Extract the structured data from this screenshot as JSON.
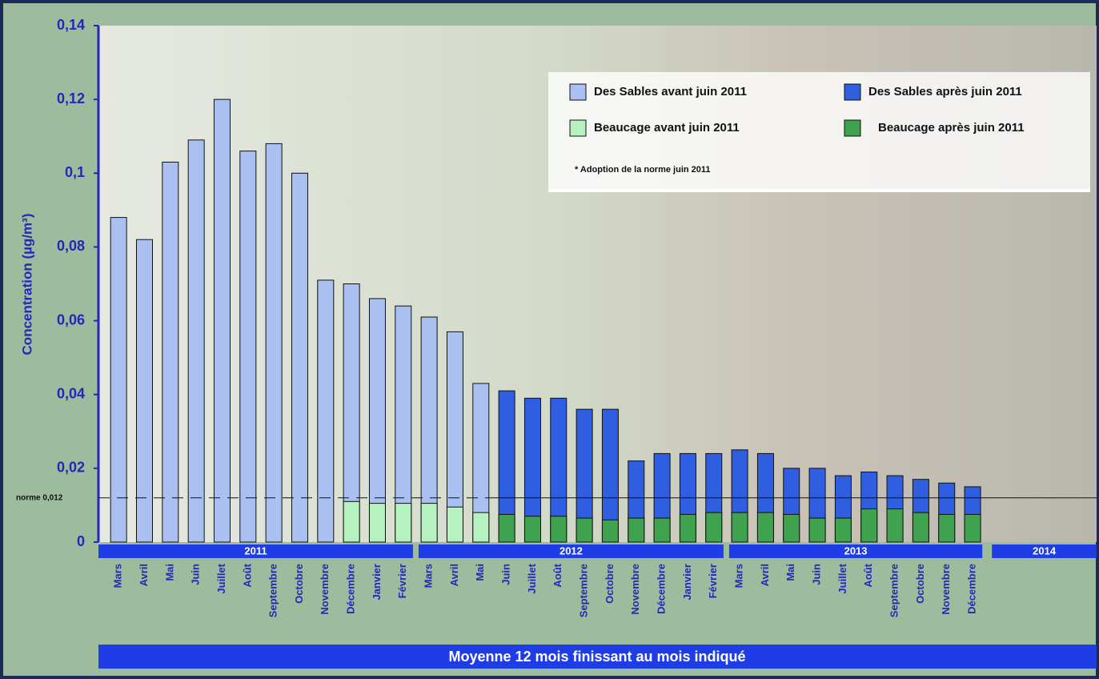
{
  "chart_data": {
    "type": "bar",
    "categories": [
      "Mars",
      "Avril",
      "Mai",
      "Juin",
      "Juillet",
      "Août",
      "Septembre",
      "Octobre",
      "Novembre",
      "Décembre",
      "Janvier",
      "Février",
      "Mars",
      "Avril",
      "Mai",
      "Juin",
      "Juillet",
      "Août",
      "Septembre",
      "Octobre",
      "Novembre",
      "Décembre",
      "Janvier",
      "Février",
      "Mars",
      "Avril",
      "Mai",
      "Juin",
      "Juillet",
      "Août",
      "Septembre",
      "Octobre",
      "Novembre",
      "Décembre"
    ],
    "years": [
      "2011",
      "2012",
      "2013",
      "2014"
    ],
    "series": [
      {
        "name": "Des Sables avant juin 2011",
        "color": "#a9c0f0",
        "values": [
          0.088,
          0.082,
          0.103,
          0.109,
          0.12,
          0.106,
          0.108,
          0.1,
          0.071,
          0.07,
          0.066,
          0.064,
          0.061,
          0.057,
          0.043,
          null,
          null,
          null,
          null,
          null,
          null,
          null,
          null,
          null,
          null,
          null,
          null,
          null,
          null,
          null,
          null,
          null,
          null,
          null
        ]
      },
      {
        "name": "Des Sables après juin 2011",
        "color": "#2f5fe0",
        "values": [
          null,
          null,
          null,
          null,
          null,
          null,
          null,
          null,
          null,
          null,
          null,
          null,
          null,
          null,
          null,
          0.041,
          0.039,
          0.039,
          0.036,
          0.036,
          0.022,
          0.024,
          0.024,
          0.024,
          0.025,
          0.024,
          0.02,
          0.02,
          0.018,
          0.019,
          0.018,
          0.017,
          0.016,
          0.015
        ]
      },
      {
        "name": "Beaucage avant juin 2011",
        "color": "#b6f2c0",
        "values": [
          null,
          null,
          null,
          null,
          null,
          null,
          null,
          null,
          null,
          0.011,
          0.0105,
          0.0105,
          0.0105,
          0.0095,
          0.008,
          null,
          null,
          null,
          null,
          null,
          null,
          null,
          null,
          null,
          null,
          null,
          null,
          null,
          null,
          null,
          null,
          null,
          null,
          null
        ]
      },
      {
        "name": "Beaucage après juin 2011",
        "color": "#3ea24f",
        "values": [
          null,
          null,
          null,
          null,
          null,
          null,
          null,
          null,
          null,
          null,
          null,
          null,
          null,
          null,
          null,
          0.0075,
          0.007,
          0.007,
          0.0065,
          0.006,
          0.0065,
          0.0065,
          0.0075,
          0.008,
          0.008,
          0.008,
          0.0075,
          0.0065,
          0.0065,
          0.009,
          0.009,
          0.008,
          0.0075,
          0.0075
        ]
      }
    ],
    "y_label": "Concentration (µg/m³)",
    "x_label": "Moyenne 12 mois finissant au mois indiqué",
    "annotation": "* Adoption de la norme juin 2011",
    "reference_line": {
      "value": 0.012,
      "label": "norme 0,012"
    },
    "ylim": [
      0,
      0.14
    ],
    "yticks": [
      0,
      {
        "value": 0.02,
        "label": "0,02"
      },
      {
        "value": 0.04,
        "label": "0,04"
      },
      {
        "value": 0.06,
        "label": "0,06"
      },
      {
        "value": 0.08,
        "label": "0,08"
      },
      {
        "value": 0.1,
        "label": "0,1"
      },
      {
        "value": 0.12,
        "label": "0,12"
      },
      {
        "value": 0.14,
        "label": "0,14"
      }
    ],
    "grid": false
  }
}
